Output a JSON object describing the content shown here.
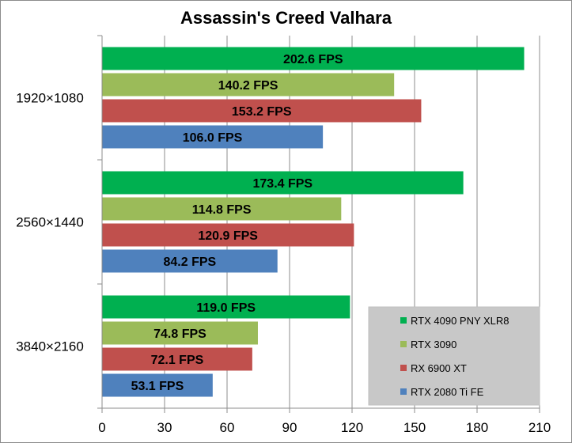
{
  "chart_data": {
    "type": "bar",
    "orientation": "horizontal",
    "title": "Assassin's Creed Valhara",
    "categories": [
      "1920×1080",
      "2560×1440",
      "3840×2160"
    ],
    "series": [
      {
        "name": "RTX 4090 PNY XLR8",
        "color": "#00b050",
        "values": [
          202.6,
          173.4,
          119.0
        ],
        "labels": [
          "202.6 FPS",
          "173.4 FPS",
          "119.0 FPS"
        ]
      },
      {
        "name": "RTX 3090",
        "color": "#9bbb59",
        "values": [
          140.2,
          114.8,
          74.8
        ],
        "labels": [
          "140.2 FPS",
          "114.8 FPS",
          "74.8 FPS"
        ]
      },
      {
        "name": "RX 6900 XT",
        "color": "#c0504d",
        "values": [
          153.2,
          120.9,
          72.1
        ],
        "labels": [
          "153.2 FPS",
          "120.9 FPS",
          "72.1 FPS"
        ]
      },
      {
        "name": "RTX 2080 Ti FE",
        "color": "#4f81bd",
        "values": [
          106.0,
          84.2,
          53.1
        ],
        "labels": [
          "106.0 FPS",
          "84.2 FPS",
          "53.1 FPS"
        ]
      }
    ],
    "xlim": [
      0,
      210
    ],
    "xticks": [
      "0",
      "30",
      "60",
      "90",
      "120",
      "150",
      "180",
      "210"
    ],
    "grid": true,
    "legend": "bottom-right"
  }
}
